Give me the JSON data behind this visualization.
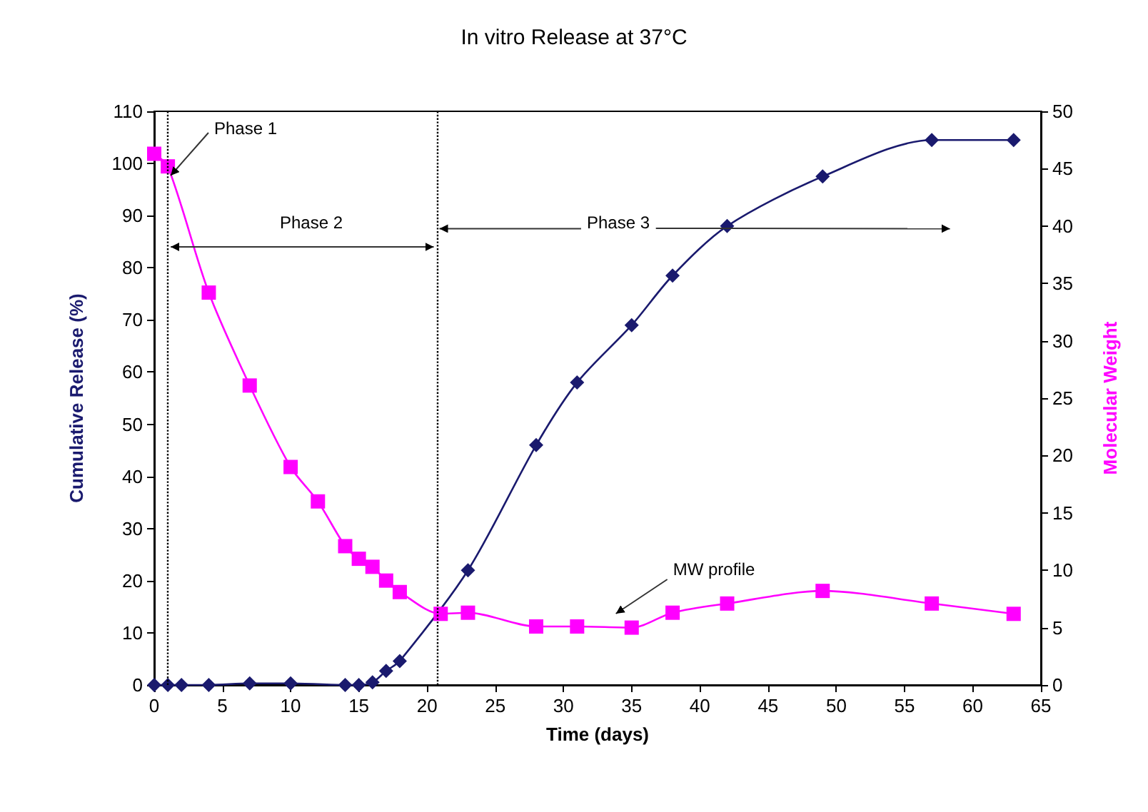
{
  "chart_data": {
    "type": "line",
    "title": "In vitro Release at 37°C",
    "xlabel": "Time (days)",
    "ylabel": "Cumulative Release (%)",
    "y2label": "Molecular Weight",
    "xlim": [
      0,
      65
    ],
    "xticks": [
      0,
      5,
      10,
      15,
      20,
      25,
      30,
      35,
      40,
      45,
      50,
      55,
      60,
      65
    ],
    "ylim": [
      0,
      110
    ],
    "yticks": [
      0,
      10,
      20,
      30,
      40,
      50,
      60,
      70,
      80,
      90,
      100,
      110
    ],
    "y2lim": [
      0,
      50
    ],
    "y2ticks": [
      0,
      5,
      10,
      15,
      20,
      25,
      30,
      35,
      40,
      45,
      50
    ],
    "line_style": "solid",
    "series": [
      {
        "color": "#1a1a6e",
        "marker": "diamond",
        "x": [
          0,
          1,
          2,
          4,
          7,
          10,
          14,
          15,
          16,
          17,
          18,
          23,
          28,
          31,
          35,
          38,
          42,
          49,
          57,
          63
        ],
        "values": [
          0,
          0,
          0,
          0,
          0.3,
          0.3,
          0,
          0,
          0.5,
          2.7,
          4.6,
          22,
          46,
          58,
          69,
          78.5,
          88,
          97.5,
          104.5,
          104.5
        ]
      },
      {
        "color": "#ff00ff",
        "marker": "square",
        "axis": "y2",
        "x": [
          0,
          1,
          4,
          7,
          10,
          12,
          14,
          15,
          16,
          17,
          18,
          21,
          23,
          28,
          31,
          35,
          38,
          42,
          49,
          57,
          63
        ],
        "values": [
          46.3,
          45.2,
          34.2,
          26.1,
          19,
          16,
          12.1,
          11,
          10.3,
          9.1,
          8.1,
          6.2,
          6.3,
          5.1,
          5.1,
          5,
          6.3,
          7.1,
          8.2,
          7.1,
          6.2
        ]
      }
    ],
    "ref_lines": [
      {
        "axis": "x",
        "value": 1,
        "line_style": "dotted",
        "color": "#000000"
      },
      {
        "axis": "x",
        "value": 20.7,
        "line_style": "dotted",
        "color": "#000000"
      }
    ],
    "annotations": [
      "Phase 1",
      "Phase 2",
      {
        "text": "Phase 3",
        "x": 20.7,
        "y": 87.5
      },
      "MW profile"
    ]
  }
}
